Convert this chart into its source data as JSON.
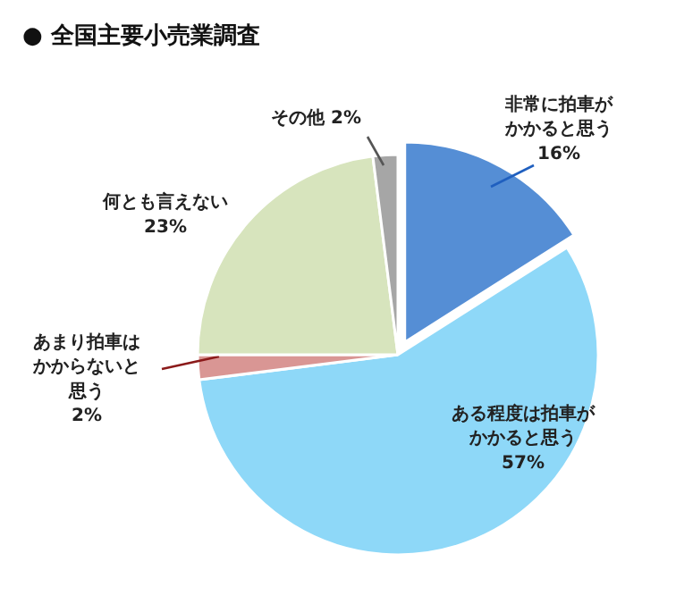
{
  "chart_data": {
    "type": "pie",
    "title": "● 全国主要小売業調査",
    "categories": [
      "非常に拍車がかかると思う",
      "ある程度は拍車がかかると思う",
      "あまり拍車はかからないと思う",
      "何とも言えない",
      "その他"
    ],
    "values": [
      16,
      57,
      2,
      23,
      2
    ],
    "value_labels": [
      "16%",
      "57%",
      "2%",
      "23%",
      "2%"
    ],
    "colors": [
      "#558ed5",
      "#8ed8f8",
      "#d99694",
      "#d7e4bd",
      "#a6a6a6"
    ]
  }
}
